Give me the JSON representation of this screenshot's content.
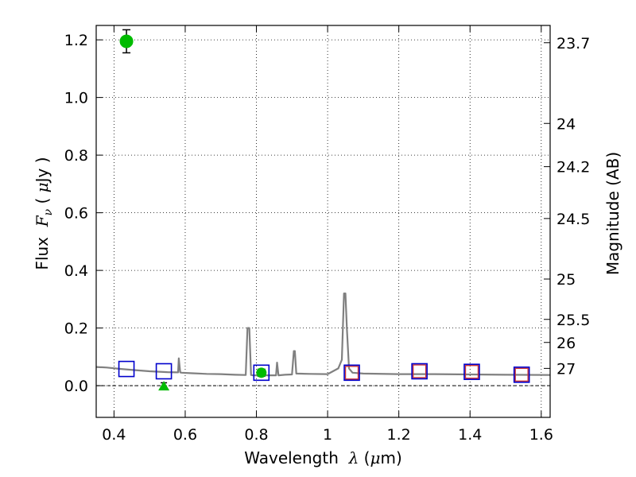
{
  "chart_data": {
    "type": "scatter",
    "title": "",
    "xlabel": "Wavelength",
    "xlabel_symbol": "λ",
    "xlabel_unit_open": " (",
    "xlabel_unit_mu": "μ",
    "xlabel_unit_close": "m)",
    "ylabel_prefix": "Flux",
    "ylabel_symbol": "F",
    "ylabel_subscript": "ν",
    "ylabel_unit_open": " (",
    "ylabel_unit_mu": "μ",
    "ylabel_unit_close": "Jy )",
    "y2label": "Magnitude (AB)",
    "xlim": [
      0.35,
      1.625
    ],
    "ylim": [
      -0.11,
      1.25
    ],
    "xticks": [
      0.4,
      0.6,
      0.8,
      1.0,
      1.2,
      1.4,
      1.6
    ],
    "xtick_labels": [
      "0.4",
      "0.6",
      "0.8",
      "1",
      "1.2",
      "1.4",
      "1.6"
    ],
    "yticks": [
      0.0,
      0.2,
      0.4,
      0.6,
      0.8,
      1.0,
      1.2
    ],
    "ytick_labels": [
      "0.0",
      "0.2",
      "0.4",
      "0.6",
      "0.8",
      "1.0",
      "1.2"
    ],
    "y2ticks": [
      {
        "flux": 1.19,
        "label": "23.7"
      },
      {
        "flux": 0.91,
        "label": "24"
      },
      {
        "flux": 0.76,
        "label": "24.2"
      },
      {
        "flux": 0.58,
        "label": "24.5"
      },
      {
        "flux": 0.37,
        "label": "25"
      },
      {
        "flux": 0.23,
        "label": "25.5"
      },
      {
        "flux": 0.15,
        "label": "26"
      },
      {
        "flux": 0.06,
        "label": "27"
      }
    ],
    "grid": true,
    "colors": {
      "sed": "#808080",
      "observed": "#00bb00",
      "model_band": "#0000cc",
      "model_alt": "#cc3333",
      "zero_line": "#000000"
    },
    "series": [
      {
        "kind": "line",
        "x": [
          0.35,
          0.38,
          0.42,
          0.46,
          0.5,
          0.55,
          0.58,
          0.582,
          0.586,
          0.59,
          0.62,
          0.66,
          0.7,
          0.74,
          0.77,
          0.775,
          0.78,
          0.785,
          0.79,
          0.8,
          0.83,
          0.855,
          0.858,
          0.862,
          0.88,
          0.9,
          0.905,
          0.908,
          0.912,
          0.95,
          1.0,
          1.03,
          1.04,
          1.046,
          1.05,
          1.054,
          1.06,
          1.07,
          1.1,
          1.2,
          1.3,
          1.4,
          1.5,
          1.625
        ],
        "y": [
          0.065,
          0.063,
          0.058,
          0.054,
          0.05,
          0.047,
          0.046,
          0.095,
          0.046,
          0.045,
          0.043,
          0.041,
          0.04,
          0.038,
          0.037,
          0.2,
          0.2,
          0.037,
          0.036,
          0.036,
          0.036,
          0.036,
          0.08,
          0.036,
          0.038,
          0.039,
          0.12,
          0.12,
          0.042,
          0.041,
          0.04,
          0.06,
          0.09,
          0.32,
          0.32,
          0.2,
          0.06,
          0.045,
          0.042,
          0.04,
          0.04,
          0.039,
          0.038,
          0.037
        ]
      },
      {
        "kind": "observed_points",
        "points": [
          {
            "x": 0.435,
            "y": 1.195,
            "yerr": 0.04
          },
          {
            "x": 0.814,
            "y": 0.045,
            "yerr": 0.012
          }
        ]
      },
      {
        "kind": "upper_limit",
        "points": [
          {
            "x": 0.54,
            "y": 0.0,
            "yerr": 0.01
          }
        ]
      },
      {
        "kind": "model_squares_blue",
        "points": [
          {
            "x": 0.435,
            "y": 0.058
          },
          {
            "x": 0.54,
            "y": 0.05
          },
          {
            "x": 0.814,
            "y": 0.045
          },
          {
            "x": 1.068,
            "y": 0.045
          },
          {
            "x": 1.258,
            "y": 0.05
          },
          {
            "x": 1.405,
            "y": 0.048
          },
          {
            "x": 1.545,
            "y": 0.038
          }
        ]
      },
      {
        "kind": "model_squares_red",
        "points": [
          {
            "x": 1.068,
            "y": 0.045
          },
          {
            "x": 1.258,
            "y": 0.05
          },
          {
            "x": 1.405,
            "y": 0.048
          },
          {
            "x": 1.545,
            "y": 0.038
          }
        ]
      }
    ]
  }
}
